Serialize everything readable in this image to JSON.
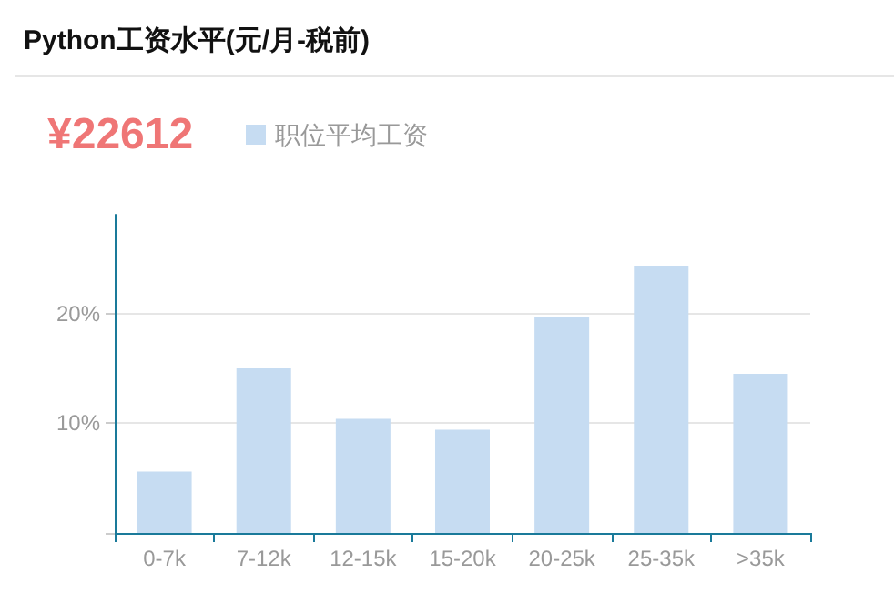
{
  "chart_data": {
    "type": "bar",
    "title": "Python工资水平(元/月-税前)",
    "annotations": [
      "¥22612"
    ],
    "categories": [
      "0-7k",
      "7-12k",
      "12-15k",
      "15-20k",
      "20-25k",
      "25-35k",
      ">35k"
    ],
    "series": [
      {
        "name": "职位平均工资",
        "color": "#c6dcf2",
        "values": [
          5.6,
          15.0,
          10.4,
          9.4,
          19.7,
          24.3,
          14.5
        ]
      }
    ],
    "ylim": [
      0,
      29
    ],
    "yticks": [
      {
        "value": 0,
        "label": null
      },
      {
        "value": 10,
        "label": "10%"
      },
      {
        "value": 20,
        "label": "20%"
      }
    ],
    "grid": "y",
    "legend": "top"
  }
}
